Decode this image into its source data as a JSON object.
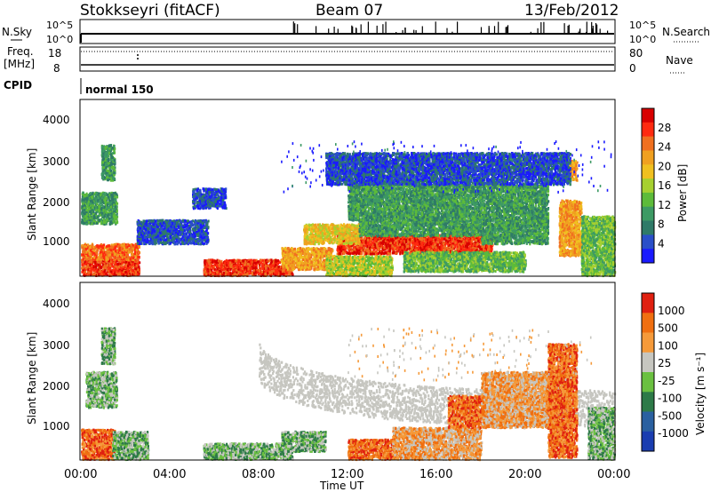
{
  "header": {
    "title": "Stokkseyri (fitACF)",
    "beam": "Beam 07",
    "date": "13/Feb/2012"
  },
  "top_panel": {
    "left_label": "N.Sky",
    "left_ticks": [
      "10^5",
      "10^0"
    ],
    "right_ticks": [
      "10^5",
      "10^0"
    ],
    "right_label": "N.Search"
  },
  "freq_panel": {
    "left_label_1": "Freq.",
    "left_label_2": "[MHz]",
    "left_ticks": [
      "18",
      "8"
    ],
    "right_ticks": [
      "80",
      "0"
    ],
    "right_label": "Nave"
  },
  "cpid": {
    "label": "CPID",
    "program": "normal 150"
  },
  "power_panel": {
    "ylabel": "Slant Range [km]",
    "yticks": [
      "4000",
      "3000",
      "2000",
      "1000"
    ],
    "colorbar_label": "Power [dB]",
    "colorbar_ticks": [
      "28",
      "24",
      "20",
      "16",
      "12",
      "8",
      "4"
    ]
  },
  "velocity_panel": {
    "ylabel": "Slant Range [km]",
    "yticks": [
      "4000",
      "3000",
      "2000",
      "1000"
    ],
    "colorbar_label": "Velocity [m s⁻¹]",
    "colorbar_ticks": [
      "1000",
      "500",
      "100",
      "25",
      "-25",
      "-100",
      "-500",
      "-1000"
    ]
  },
  "xaxis": {
    "label": "Time UT",
    "ticks": [
      "00:00",
      "04:00",
      "08:00",
      "12:00",
      "16:00",
      "20:00",
      "00:00"
    ]
  },
  "chart_data": {
    "type": "heatmap",
    "title": "Stokkseyri (fitACF)",
    "subtitle": "Beam 07",
    "date": "13/Feb/2012",
    "xlabel": "Time UT",
    "ylabel": "Slant Range [km]",
    "xlim": [
      0,
      24
    ],
    "ylim": [
      180,
      4600
    ],
    "colors": {
      "power": [
        "#1a1aff",
        "#2a4fc8",
        "#2f7a68",
        "#3d9a64",
        "#5dbb3a",
        "#a6d030",
        "#f0c020",
        "#f0a020",
        "#f07020",
        "#ff2a10",
        "#d80000"
      ],
      "velocity": [
        "#1a3db0",
        "#2a60a0",
        "#2d7a48",
        "#6ac040",
        "#c6c6c0",
        "#f59a3a",
        "#f06f10",
        "#e02010"
      ]
    },
    "power_bands": [
      {
        "t0": 0.0,
        "t1": 2.6,
        "r0": 200,
        "r1": 600,
        "level": 9
      },
      {
        "t0": 0.0,
        "t1": 2.6,
        "r0": 600,
        "r1": 1000,
        "level": 8
      },
      {
        "t0": 0.0,
        "t1": 1.6,
        "r0": 1500,
        "r1": 2300,
        "level": 3
      },
      {
        "t0": 0.9,
        "t1": 1.5,
        "r0": 2600,
        "r1": 3500,
        "level": 3
      },
      {
        "t0": 2.5,
        "t1": 5.7,
        "r0": 1000,
        "r1": 1600,
        "level": 1
      },
      {
        "t0": 5.0,
        "t1": 6.5,
        "r0": 1900,
        "r1": 2400,
        "level": 1
      },
      {
        "t0": 5.5,
        "t1": 9.5,
        "r0": 200,
        "r1": 600,
        "level": 9
      },
      {
        "t0": 9.0,
        "t1": 11.3,
        "r0": 350,
        "r1": 900,
        "level": 7
      },
      {
        "t0": 11.0,
        "t1": 14.0,
        "r0": 200,
        "r1": 700,
        "level": 5
      },
      {
        "t0": 11.5,
        "t1": 18.5,
        "r0": 750,
        "r1": 1250,
        "level": 9
      },
      {
        "t0": 10.0,
        "t1": 12.5,
        "r0": 1000,
        "r1": 1500,
        "level": 6
      },
      {
        "t0": 12.5,
        "t1": 18.0,
        "r0": 1200,
        "r1": 1600,
        "level": 3
      },
      {
        "t0": 12.0,
        "t1": 21.0,
        "r0": 1600,
        "r1": 2500,
        "level": 3
      },
      {
        "t0": 14.5,
        "t1": 20.0,
        "r0": 300,
        "r1": 800,
        "level": 4
      },
      {
        "t0": 18.0,
        "t1": 21.0,
        "r0": 1000,
        "r1": 1600,
        "level": 3
      },
      {
        "t0": 21.5,
        "t1": 22.5,
        "r0": 700,
        "r1": 2100,
        "level": 7
      },
      {
        "t0": 21.8,
        "t1": 22.3,
        "r0": 2600,
        "r1": 3100,
        "level": 7
      },
      {
        "t0": 11.0,
        "t1": 22.0,
        "r0": 2500,
        "r1": 3300,
        "level": 1
      },
      {
        "t0": 22.5,
        "t1": 24.0,
        "r0": 200,
        "r1": 1700,
        "level": 4
      }
    ],
    "velocity_bands": [
      {
        "t0": 0.0,
        "t1": 1.5,
        "r0": 200,
        "r1": 950,
        "level": 6
      },
      {
        "t0": 1.4,
        "t1": 3.0,
        "r0": 200,
        "r1": 900,
        "level": 3
      },
      {
        "t0": 0.2,
        "t1": 1.6,
        "r0": 1500,
        "r1": 2400,
        "level": 3
      },
      {
        "t0": 0.9,
        "t1": 1.5,
        "r0": 2600,
        "r1": 3500,
        "level": 3
      },
      {
        "t0": 5.5,
        "t1": 9.5,
        "r0": 200,
        "r1": 600,
        "level": 3
      },
      {
        "t0": 9.0,
        "t1": 11.0,
        "r0": 400,
        "r1": 900,
        "level": 3
      },
      {
        "t0": 12.0,
        "t1": 14.2,
        "r0": 200,
        "r1": 700,
        "level": 6
      },
      {
        "t0": 14.0,
        "t1": 18.0,
        "r0": 200,
        "r1": 1000,
        "level": 5
      },
      {
        "t0": 16.5,
        "t1": 18.5,
        "r0": 1000,
        "r1": 1800,
        "level": 6
      },
      {
        "t0": 18.0,
        "t1": 22.0,
        "r0": 1000,
        "r1": 2400,
        "level": 5
      },
      {
        "t0": 21.0,
        "t1": 22.3,
        "r0": 250,
        "r1": 3100,
        "level": 6
      },
      {
        "t0": 22.8,
        "t1": 24.0,
        "r0": 200,
        "r1": 1500,
        "level": 3
      }
    ],
    "velocity_grey_arc": {
      "t0": 8.0,
      "t1": 24.0,
      "r_top": 2700,
      "r_bottom": 700,
      "level": 4
    }
  }
}
